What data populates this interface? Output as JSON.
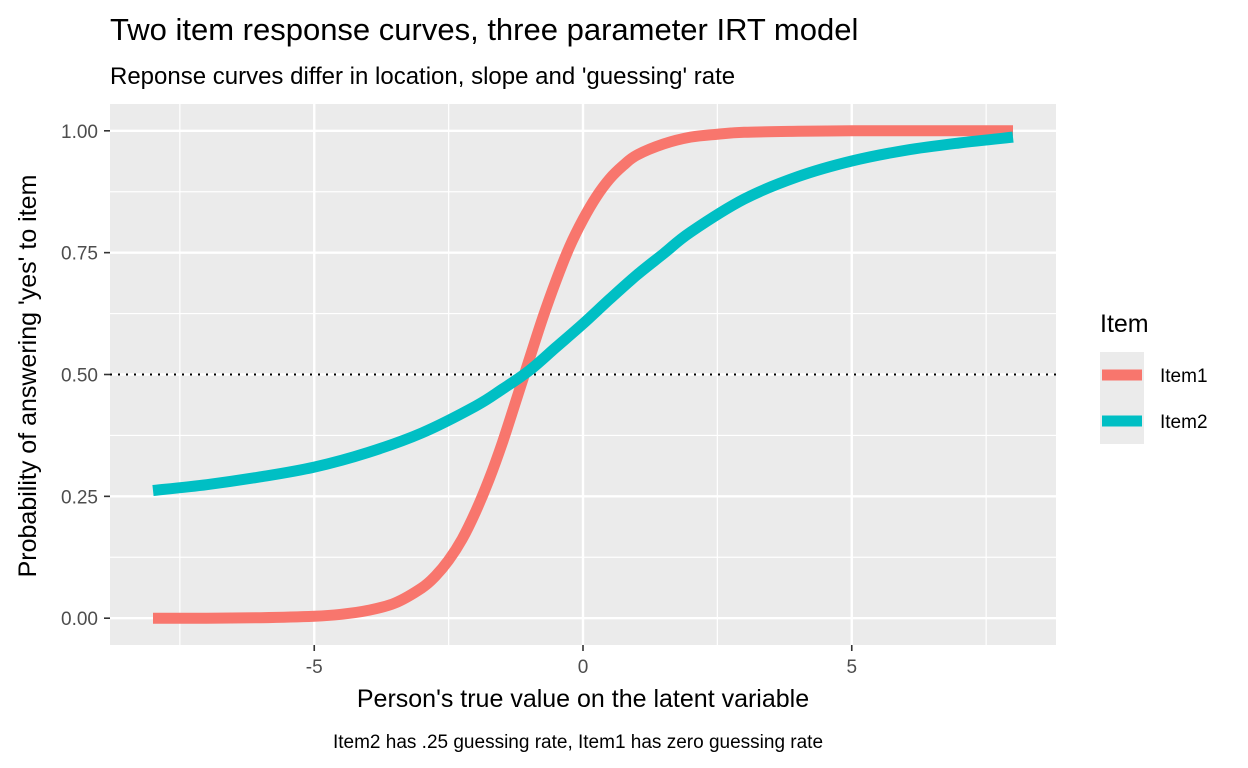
{
  "chart_data": {
    "type": "line",
    "title": "Two item response curves, three parameter IRT model",
    "subtitle": "Reponse curves differ in location, slope and 'guessing' rate",
    "xlabel": "Person's true value on the latent variable",
    "ylabel": "Probability of answering 'yes' to item",
    "caption": "Item2 has .25 guessing rate, Item1 has zero guessing rate",
    "xlim": [
      -8.8,
      8.8
    ],
    "ylim": [
      -0.055,
      1.055
    ],
    "x_breaks": [
      -5,
      0,
      5
    ],
    "x_tick_labels": [
      "-5",
      "0",
      "5"
    ],
    "x_minor_breaks": [
      -7.5,
      -2.5,
      2.5,
      7.5
    ],
    "y_breaks": [
      0,
      0.25,
      0.5,
      0.75,
      1
    ],
    "y_tick_labels": [
      "0.00",
      "0.25",
      "0.50",
      "0.75",
      "1.00"
    ],
    "y_minor_breaks": [
      0.125,
      0.375,
      0.625,
      0.875
    ],
    "reference_line": {
      "y": 0.5,
      "style": "dotted",
      "color": "#000000"
    },
    "grid": true,
    "legend": {
      "title": "Item",
      "position": "right"
    },
    "series": [
      {
        "name": "Item1",
        "color": "#F8766D",
        "x": [
          -8,
          -7,
          -6,
          -5,
          -4.5,
          -4,
          -3.5,
          -3,
          -2.75,
          -2.5,
          -2.25,
          -2,
          -1.75,
          -1.5,
          -1.25,
          -1,
          -0.75,
          -0.5,
          -0.25,
          0,
          0.25,
          0.5,
          0.75,
          1,
          1.5,
          2,
          2.5,
          3,
          4,
          5,
          6,
          7,
          8
        ],
        "values": [
          0.0,
          0.0,
          0.001,
          0.004,
          0.008,
          0.016,
          0.031,
          0.062,
          0.086,
          0.119,
          0.162,
          0.218,
          0.284,
          0.36,
          0.445,
          0.531,
          0.616,
          0.693,
          0.762,
          0.818,
          0.865,
          0.902,
          0.929,
          0.95,
          0.973,
          0.987,
          0.993,
          0.997,
          0.999,
          1.0,
          1.0,
          1.0,
          1.0
        ]
      },
      {
        "name": "Item2",
        "color": "#00BFC4",
        "x": [
          -8,
          -7,
          -6,
          -5,
          -4,
          -3,
          -2,
          -1.5,
          -1,
          -0.5,
          0,
          0.5,
          1,
          1.5,
          2,
          3,
          4,
          5,
          6,
          7,
          8
        ],
        "values": [
          0.262,
          0.274,
          0.29,
          0.31,
          0.34,
          0.38,
          0.435,
          0.47,
          0.508,
          0.556,
          0.604,
          0.655,
          0.704,
          0.748,
          0.792,
          0.86,
          0.906,
          0.938,
          0.96,
          0.975,
          0.987
        ]
      }
    ]
  }
}
